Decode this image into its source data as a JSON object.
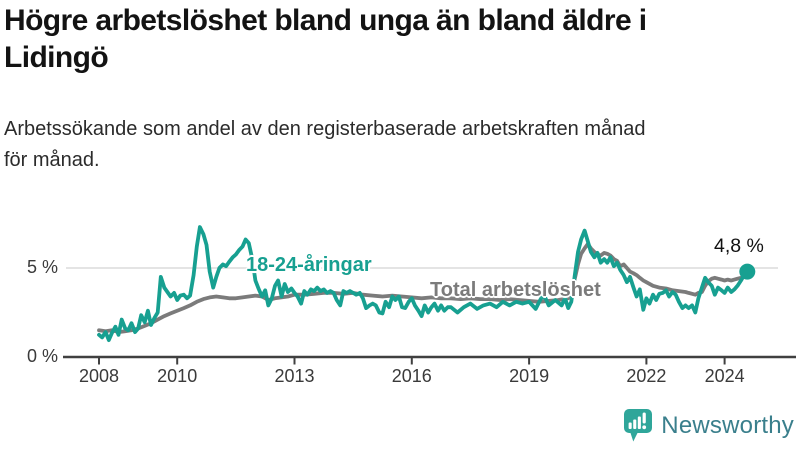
{
  "header": {
    "title_line1": "Högre arbetslöshet bland unga än bland äldre i",
    "title_line2": "Lidingö",
    "subtitle_line1": "Arbetssökande som andel av den registerbaserade arbetskraften månad",
    "subtitle_line2": "för månad."
  },
  "chart_data": {
    "type": "line",
    "title": "Högre arbetslöshet bland unga än bland äldre i Lidingö",
    "subtitle": "Arbetssökande som andel av den registerbaserade arbetskraften månad för månad.",
    "x_unit": "decimal_year_monthly",
    "xlabel": "",
    "ylabel": "",
    "xlim": [
      2007.75,
      2025.0
    ],
    "ylim": [
      0,
      7.8
    ],
    "x_ticks": [
      2008,
      2010,
      2013,
      2016,
      2019,
      2022,
      2024
    ],
    "y_ticks": [
      {
        "value": 0,
        "label": "0 %"
      },
      {
        "value": 5,
        "label": "5 %"
      }
    ],
    "grid": "single horizontal gridline at 5 %",
    "legend_position": "inline labels on lines",
    "end_annotation": {
      "label": "4,8 %",
      "value": 4.8,
      "series": "18-24-åringar"
    },
    "series": [
      {
        "name": "18-24-åringar",
        "color": "#17a091",
        "points": [
          [
            2008.0,
            1.25
          ],
          [
            2008.08,
            1.1
          ],
          [
            2008.17,
            1.4
          ],
          [
            2008.25,
            0.95
          ],
          [
            2008.33,
            1.35
          ],
          [
            2008.42,
            1.7
          ],
          [
            2008.5,
            1.25
          ],
          [
            2008.58,
            2.1
          ],
          [
            2008.67,
            1.6
          ],
          [
            2008.75,
            1.5
          ],
          [
            2008.83,
            1.9
          ],
          [
            2008.92,
            1.4
          ],
          [
            2009.0,
            1.6
          ],
          [
            2009.08,
            2.35
          ],
          [
            2009.17,
            1.95
          ],
          [
            2009.25,
            2.6
          ],
          [
            2009.33,
            1.8
          ],
          [
            2009.42,
            2.2
          ],
          [
            2009.5,
            2.5
          ],
          [
            2009.58,
            4.5
          ],
          [
            2009.67,
            3.9
          ],
          [
            2009.75,
            3.65
          ],
          [
            2009.83,
            3.4
          ],
          [
            2009.92,
            3.6
          ],
          [
            2010.0,
            3.2
          ],
          [
            2010.08,
            3.45
          ],
          [
            2010.17,
            3.5
          ],
          [
            2010.25,
            3.3
          ],
          [
            2010.33,
            3.45
          ],
          [
            2010.42,
            4.6
          ],
          [
            2010.5,
            6.2
          ],
          [
            2010.58,
            7.3
          ],
          [
            2010.67,
            6.9
          ],
          [
            2010.75,
            6.3
          ],
          [
            2010.83,
            4.8
          ],
          [
            2010.92,
            3.9
          ],
          [
            2011.0,
            4.5
          ],
          [
            2011.08,
            5.0
          ],
          [
            2011.17,
            5.2
          ],
          [
            2011.25,
            5.1
          ],
          [
            2011.33,
            5.35
          ],
          [
            2011.42,
            5.6
          ],
          [
            2011.5,
            5.75
          ],
          [
            2011.58,
            6.0
          ],
          [
            2011.67,
            6.2
          ],
          [
            2011.75,
            6.6
          ],
          [
            2011.83,
            6.4
          ],
          [
            2011.92,
            5.5
          ],
          [
            2012.0,
            4.3
          ],
          [
            2012.08,
            3.85
          ],
          [
            2012.17,
            3.4
          ],
          [
            2012.25,
            3.75
          ],
          [
            2012.33,
            2.9
          ],
          [
            2012.42,
            3.3
          ],
          [
            2012.5,
            4.0
          ],
          [
            2012.58,
            4.3
          ],
          [
            2012.67,
            3.4
          ],
          [
            2012.75,
            4.1
          ],
          [
            2012.83,
            3.65
          ],
          [
            2012.92,
            3.85
          ],
          [
            2013.0,
            3.6
          ],
          [
            2013.08,
            3.4
          ],
          [
            2013.17,
            3.0
          ],
          [
            2013.25,
            3.7
          ],
          [
            2013.33,
            3.5
          ],
          [
            2013.42,
            3.8
          ],
          [
            2013.5,
            3.7
          ],
          [
            2013.58,
            3.9
          ],
          [
            2013.67,
            3.7
          ],
          [
            2013.75,
            3.8
          ],
          [
            2013.83,
            3.6
          ],
          [
            2013.92,
            3.7
          ],
          [
            2014.0,
            3.6
          ],
          [
            2014.08,
            3.2
          ],
          [
            2014.17,
            2.9
          ],
          [
            2014.25,
            3.7
          ],
          [
            2014.33,
            3.6
          ],
          [
            2014.42,
            3.7
          ],
          [
            2014.5,
            3.6
          ],
          [
            2014.58,
            3.5
          ],
          [
            2014.67,
            3.6
          ],
          [
            2014.75,
            3.3
          ],
          [
            2014.83,
            2.75
          ],
          [
            2014.92,
            2.9
          ],
          [
            2015.0,
            3.0
          ],
          [
            2015.08,
            2.9
          ],
          [
            2015.17,
            2.5
          ],
          [
            2015.25,
            2.45
          ],
          [
            2015.33,
            3.1
          ],
          [
            2015.42,
            2.8
          ],
          [
            2015.5,
            3.4
          ],
          [
            2015.58,
            3.2
          ],
          [
            2015.67,
            3.4
          ],
          [
            2015.75,
            2.8
          ],
          [
            2015.83,
            2.75
          ],
          [
            2015.92,
            3.1
          ],
          [
            2016.0,
            3.3
          ],
          [
            2016.08,
            2.9
          ],
          [
            2016.17,
            2.6
          ],
          [
            2016.25,
            2.3
          ],
          [
            2016.33,
            2.9
          ],
          [
            2016.42,
            2.5
          ],
          [
            2016.5,
            2.8
          ],
          [
            2016.58,
            3.0
          ],
          [
            2016.67,
            2.6
          ],
          [
            2016.75,
            2.9
          ],
          [
            2016.83,
            2.6
          ],
          [
            2016.92,
            2.8
          ],
          [
            2017.0,
            2.8
          ],
          [
            2017.17,
            2.5
          ],
          [
            2017.33,
            2.8
          ],
          [
            2017.5,
            3.0
          ],
          [
            2017.67,
            2.7
          ],
          [
            2017.83,
            2.9
          ],
          [
            2018.0,
            3.0
          ],
          [
            2018.17,
            2.8
          ],
          [
            2018.33,
            3.1
          ],
          [
            2018.5,
            2.9
          ],
          [
            2018.67,
            3.1
          ],
          [
            2018.83,
            3.0
          ],
          [
            2019.0,
            3.1
          ],
          [
            2019.17,
            2.7
          ],
          [
            2019.33,
            3.4
          ],
          [
            2019.42,
            3.3
          ],
          [
            2019.5,
            2.9
          ],
          [
            2019.67,
            3.2
          ],
          [
            2019.83,
            2.9
          ],
          [
            2019.92,
            3.3
          ],
          [
            2020.0,
            2.75
          ],
          [
            2020.08,
            3.1
          ],
          [
            2020.17,
            4.6
          ],
          [
            2020.25,
            5.9
          ],
          [
            2020.33,
            6.6
          ],
          [
            2020.42,
            7.1
          ],
          [
            2020.5,
            6.5
          ],
          [
            2020.58,
            5.9
          ],
          [
            2020.67,
            5.6
          ],
          [
            2020.75,
            5.85
          ],
          [
            2020.83,
            5.3
          ],
          [
            2020.92,
            5.5
          ],
          [
            2021.0,
            5.3
          ],
          [
            2021.08,
            5.6
          ],
          [
            2021.17,
            5.1
          ],
          [
            2021.25,
            5.3
          ],
          [
            2021.33,
            4.9
          ],
          [
            2021.42,
            4.6
          ],
          [
            2021.5,
            4.2
          ],
          [
            2021.58,
            4.5
          ],
          [
            2021.67,
            3.9
          ],
          [
            2021.75,
            3.4
          ],
          [
            2021.83,
            3.8
          ],
          [
            2021.92,
            2.65
          ],
          [
            2022.0,
            3.3
          ],
          [
            2022.08,
            3.0
          ],
          [
            2022.17,
            3.5
          ],
          [
            2022.25,
            3.2
          ],
          [
            2022.33,
            3.55
          ],
          [
            2022.42,
            3.6
          ],
          [
            2022.5,
            3.75
          ],
          [
            2022.58,
            3.4
          ],
          [
            2022.67,
            3.65
          ],
          [
            2022.75,
            3.5
          ],
          [
            2022.83,
            3.1
          ],
          [
            2022.92,
            2.75
          ],
          [
            2023.0,
            2.9
          ],
          [
            2023.08,
            2.75
          ],
          [
            2023.17,
            2.9
          ],
          [
            2023.25,
            2.5
          ],
          [
            2023.33,
            3.3
          ],
          [
            2023.42,
            3.9
          ],
          [
            2023.5,
            4.45
          ],
          [
            2023.58,
            4.2
          ],
          [
            2023.67,
            4.0
          ],
          [
            2023.75,
            3.5
          ],
          [
            2023.83,
            3.9
          ],
          [
            2023.92,
            3.75
          ],
          [
            2024.0,
            3.6
          ],
          [
            2024.08,
            3.9
          ],
          [
            2024.17,
            3.65
          ],
          [
            2024.25,
            3.8
          ],
          [
            2024.33,
            4.0
          ],
          [
            2024.42,
            4.3
          ],
          [
            2024.5,
            4.6
          ],
          [
            2024.58,
            4.8
          ]
        ]
      },
      {
        "name": "Total arbetslöshet",
        "color": "#7b7b7b",
        "points": [
          [
            2008.0,
            1.5
          ],
          [
            2008.17,
            1.45
          ],
          [
            2008.33,
            1.5
          ],
          [
            2008.5,
            1.4
          ],
          [
            2008.67,
            1.45
          ],
          [
            2008.83,
            1.5
          ],
          [
            2009.0,
            1.6
          ],
          [
            2009.17,
            1.75
          ],
          [
            2009.33,
            1.9
          ],
          [
            2009.5,
            2.1
          ],
          [
            2009.67,
            2.3
          ],
          [
            2009.83,
            2.45
          ],
          [
            2010.0,
            2.6
          ],
          [
            2010.17,
            2.75
          ],
          [
            2010.33,
            2.9
          ],
          [
            2010.5,
            3.1
          ],
          [
            2010.67,
            3.25
          ],
          [
            2010.83,
            3.35
          ],
          [
            2011.0,
            3.4
          ],
          [
            2011.17,
            3.35
          ],
          [
            2011.33,
            3.3
          ],
          [
            2011.5,
            3.3
          ],
          [
            2011.67,
            3.35
          ],
          [
            2011.83,
            3.4
          ],
          [
            2012.0,
            3.45
          ],
          [
            2012.17,
            3.4
          ],
          [
            2012.33,
            3.2
          ],
          [
            2012.5,
            3.3
          ],
          [
            2012.67,
            3.35
          ],
          [
            2012.83,
            3.4
          ],
          [
            2013.0,
            3.5
          ],
          [
            2013.25,
            3.5
          ],
          [
            2013.5,
            3.55
          ],
          [
            2013.75,
            3.6
          ],
          [
            2014.0,
            3.6
          ],
          [
            2014.25,
            3.55
          ],
          [
            2014.5,
            3.6
          ],
          [
            2014.75,
            3.5
          ],
          [
            2015.0,
            3.45
          ],
          [
            2015.25,
            3.4
          ],
          [
            2015.5,
            3.45
          ],
          [
            2015.75,
            3.4
          ],
          [
            2016.0,
            3.35
          ],
          [
            2016.25,
            3.3
          ],
          [
            2016.5,
            3.35
          ],
          [
            2016.75,
            3.3
          ],
          [
            2017.0,
            3.3
          ],
          [
            2017.25,
            3.25
          ],
          [
            2017.5,
            3.3
          ],
          [
            2017.75,
            3.25
          ],
          [
            2018.0,
            3.25
          ],
          [
            2018.25,
            3.2
          ],
          [
            2018.5,
            3.25
          ],
          [
            2018.75,
            3.2
          ],
          [
            2019.0,
            3.15
          ],
          [
            2019.25,
            3.1
          ],
          [
            2019.5,
            3.15
          ],
          [
            2019.75,
            3.2
          ],
          [
            2020.0,
            3.3
          ],
          [
            2020.08,
            3.6
          ],
          [
            2020.17,
            4.4
          ],
          [
            2020.25,
            5.2
          ],
          [
            2020.33,
            5.8
          ],
          [
            2020.42,
            6.1
          ],
          [
            2020.5,
            6.35
          ],
          [
            2020.58,
            6.1
          ],
          [
            2020.67,
            5.9
          ],
          [
            2020.75,
            5.75
          ],
          [
            2020.83,
            5.7
          ],
          [
            2020.92,
            5.85
          ],
          [
            2021.0,
            5.8
          ],
          [
            2021.08,
            5.7
          ],
          [
            2021.17,
            5.5
          ],
          [
            2021.25,
            5.4
          ],
          [
            2021.33,
            5.1
          ],
          [
            2021.42,
            5.2
          ],
          [
            2021.5,
            5.0
          ],
          [
            2021.58,
            4.8
          ],
          [
            2021.67,
            4.7
          ],
          [
            2021.75,
            4.6
          ],
          [
            2021.83,
            4.45
          ],
          [
            2021.92,
            4.3
          ],
          [
            2022.0,
            4.2
          ],
          [
            2022.17,
            4.0
          ],
          [
            2022.33,
            3.9
          ],
          [
            2022.5,
            3.85
          ],
          [
            2022.67,
            3.75
          ],
          [
            2022.83,
            3.7
          ],
          [
            2023.0,
            3.65
          ],
          [
            2023.08,
            3.6
          ],
          [
            2023.17,
            3.55
          ],
          [
            2023.25,
            3.5
          ],
          [
            2023.33,
            3.6
          ],
          [
            2023.42,
            3.65
          ],
          [
            2023.5,
            4.0
          ],
          [
            2023.58,
            4.25
          ],
          [
            2023.67,
            4.4
          ],
          [
            2023.75,
            4.45
          ],
          [
            2023.83,
            4.4
          ],
          [
            2023.92,
            4.35
          ],
          [
            2024.0,
            4.3
          ],
          [
            2024.08,
            4.35
          ],
          [
            2024.17,
            4.3
          ],
          [
            2024.25,
            4.35
          ],
          [
            2024.33,
            4.4
          ],
          [
            2024.42,
            4.45
          ],
          [
            2024.5,
            4.5
          ],
          [
            2024.58,
            4.6
          ]
        ]
      }
    ]
  },
  "footer": {
    "brand": "Newsworthy",
    "logo_icon": "bar-chart-speech-bubble-icon"
  },
  "colors": {
    "accent_teal": "#17a091",
    "line_gray": "#7b7b7b",
    "axis": "#404040",
    "grid": "#dcdcdc",
    "title_text": "#131313",
    "brand_text": "#3a7f8c",
    "brand_bubble": "#2fa69a"
  }
}
